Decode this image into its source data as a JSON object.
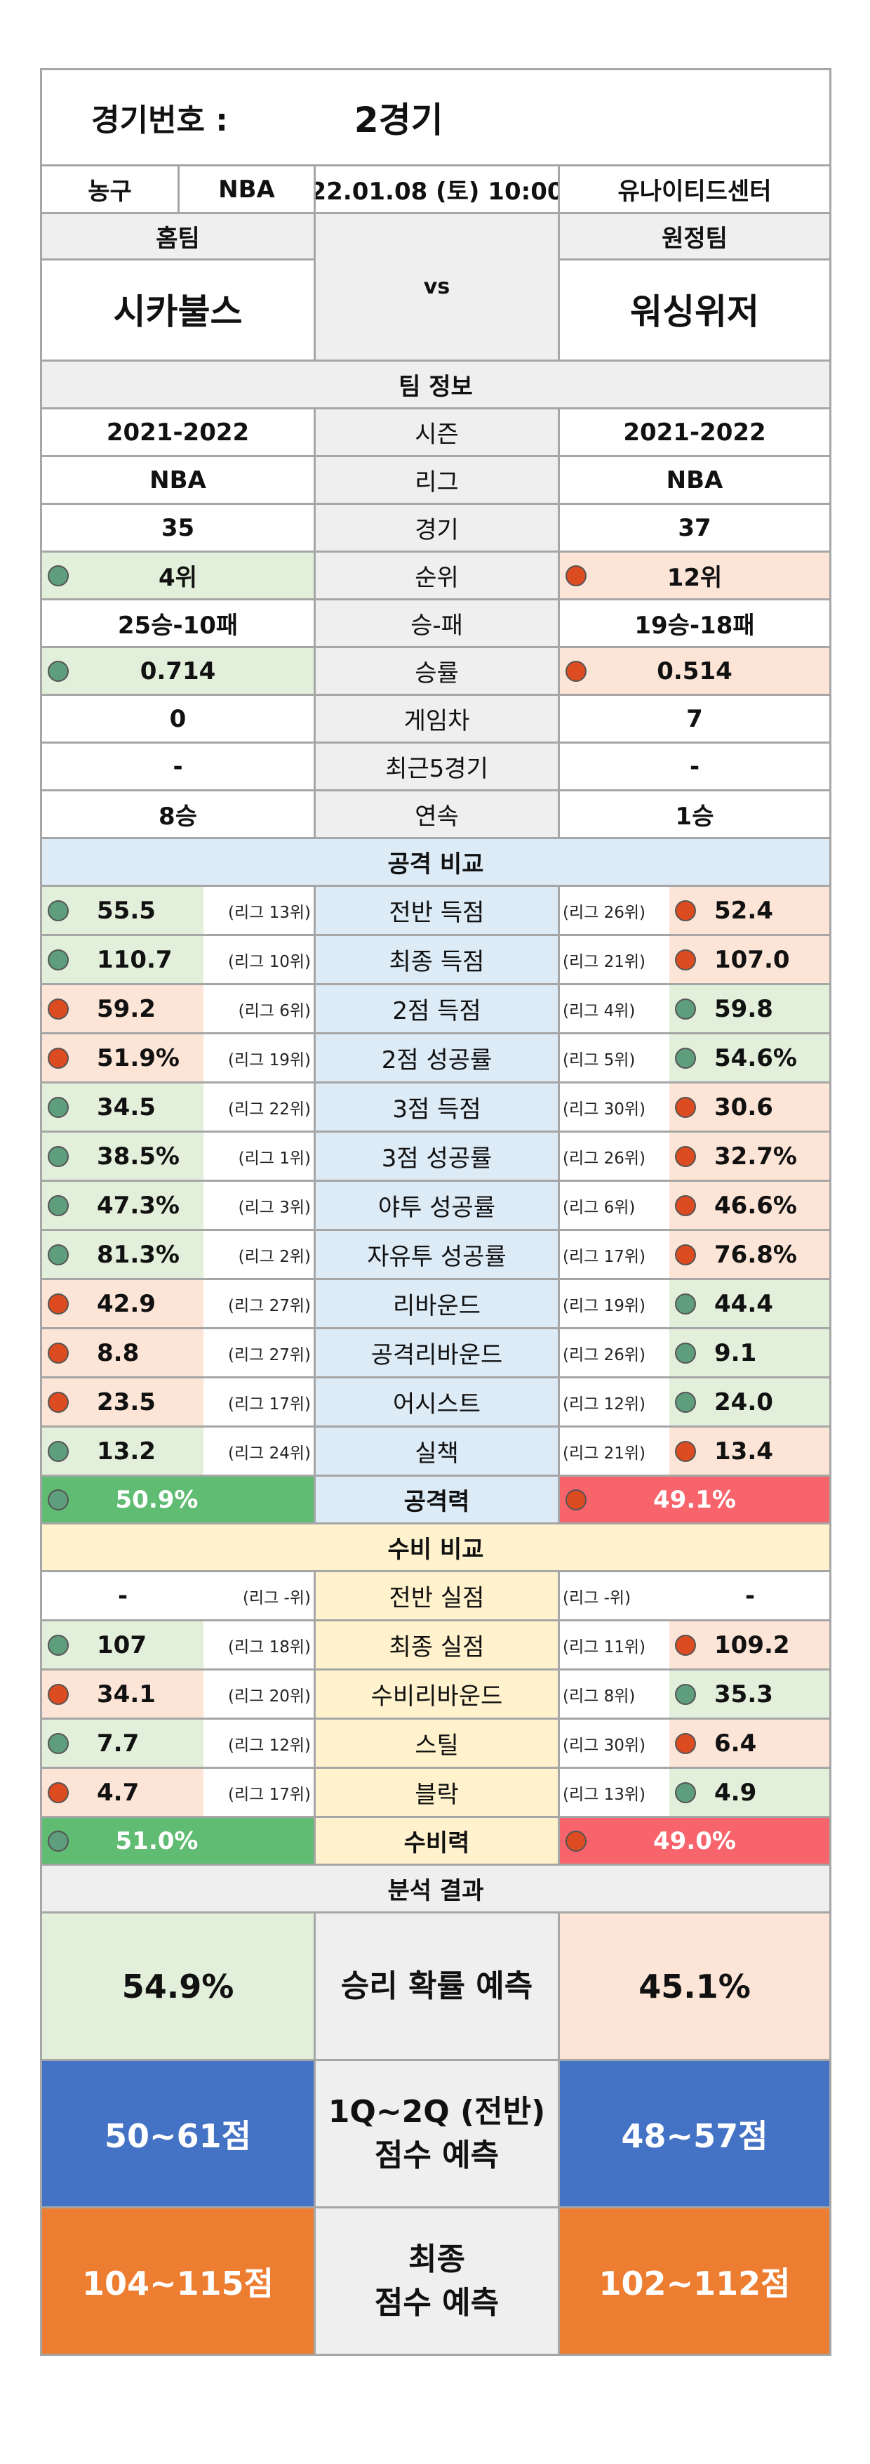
{
  "header": {
    "label": "경기번호 :",
    "value": "2경기"
  },
  "info": {
    "sport": "농구",
    "league": "NBA",
    "datetime": "22.01.08 (토) 10:00",
    "venue": "유나이티드센터"
  },
  "teams": {
    "home_label": "홈팀",
    "away_label": "원정팀",
    "vs": "vs",
    "home": "시카불스",
    "away": "워싱위저"
  },
  "team_info": {
    "title": "팀 정보",
    "rows": [
      {
        "label": "시즌",
        "home": "2021-2022",
        "away": "2021-2022",
        "hi": "none"
      },
      {
        "label": "리그",
        "home": "NBA",
        "away": "NBA",
        "hi": "none"
      },
      {
        "label": "경기",
        "home": "35",
        "away": "37",
        "hi": "none"
      },
      {
        "label": "순위",
        "home": "4위",
        "away": "12위",
        "hi": "home"
      },
      {
        "label": "승-패",
        "home": "25승-10패",
        "away": "19승-18패",
        "hi": "none"
      },
      {
        "label": "승률",
        "home": "0.714",
        "away": "0.514",
        "hi": "home"
      },
      {
        "label": "게임차",
        "home": "0",
        "away": "7",
        "hi": "none"
      },
      {
        "label": "최근5경기",
        "home": "-",
        "away": "-",
        "hi": "none"
      },
      {
        "label": "연속",
        "home": "8승",
        "away": "1승",
        "hi": "none"
      }
    ]
  },
  "attack": {
    "title": "공격 비교",
    "rows": [
      {
        "label": "전반 득점",
        "home": "55.5",
        "home_rank": "(리그 13위)",
        "away": "52.4",
        "away_rank": "(리그 26위)",
        "better": "home"
      },
      {
        "label": "최종 득점",
        "home": "110.7",
        "home_rank": "(리그 10위)",
        "away": "107.0",
        "away_rank": "(리그 21위)",
        "better": "home"
      },
      {
        "label": "2점 득점",
        "home": "59.2",
        "home_rank": "(리그 6위)",
        "away": "59.8",
        "away_rank": "(리그 4위)",
        "better": "away"
      },
      {
        "label": "2점 성공률",
        "home": "51.9%",
        "home_rank": "(리그 19위)",
        "away": "54.6%",
        "away_rank": "(리그 5위)",
        "better": "away"
      },
      {
        "label": "3점 득점",
        "home": "34.5",
        "home_rank": "(리그 22위)",
        "away": "30.6",
        "away_rank": "(리그 30위)",
        "better": "home"
      },
      {
        "label": "3점 성공률",
        "home": "38.5%",
        "home_rank": "(리그 1위)",
        "away": "32.7%",
        "away_rank": "(리그 26위)",
        "better": "home"
      },
      {
        "label": "야투 성공률",
        "home": "47.3%",
        "home_rank": "(리그 3위)",
        "away": "46.6%",
        "away_rank": "(리그 6위)",
        "better": "home"
      },
      {
        "label": "자유투 성공률",
        "home": "81.3%",
        "home_rank": "(리그 2위)",
        "away": "76.8%",
        "away_rank": "(리그 17위)",
        "better": "home"
      },
      {
        "label": "리바운드",
        "home": "42.9",
        "home_rank": "(리그 27위)",
        "away": "44.4",
        "away_rank": "(리그 19위)",
        "better": "away"
      },
      {
        "label": "공격리바운드",
        "home": "8.8",
        "home_rank": "(리그 27위)",
        "away": "9.1",
        "away_rank": "(리그 26위)",
        "better": "away"
      },
      {
        "label": "어시스트",
        "home": "23.5",
        "home_rank": "(리그 17위)",
        "away": "24.0",
        "away_rank": "(리그 12위)",
        "better": "away"
      },
      {
        "label": "실책",
        "home": "13.2",
        "home_rank": "(리그 24위)",
        "away": "13.4",
        "away_rank": "(리그 21위)",
        "better": "home"
      }
    ],
    "total": {
      "label": "공격력",
      "home": "50.9%",
      "away": "49.1%"
    }
  },
  "defense": {
    "title": "수비 비교",
    "rows": [
      {
        "label": "전반 실점",
        "home": "-",
        "home_rank": "(리그 -위)",
        "away": "-",
        "away_rank": "(리그 -위)",
        "better": "none"
      },
      {
        "label": "최종 실점",
        "home": "107",
        "home_rank": "(리그 18위)",
        "away": "109.2",
        "away_rank": "(리그 11위)",
        "better": "home"
      },
      {
        "label": "수비리바운드",
        "home": "34.1",
        "home_rank": "(리그 20위)",
        "away": "35.3",
        "away_rank": "(리그 8위)",
        "better": "away"
      },
      {
        "label": "스틸",
        "home": "7.7",
        "home_rank": "(리그 12위)",
        "away": "6.4",
        "away_rank": "(리그 30위)",
        "better": "home"
      },
      {
        "label": "블락",
        "home": "4.7",
        "home_rank": "(리그 17위)",
        "away": "4.9",
        "away_rank": "(리그 13위)",
        "better": "away"
      }
    ],
    "total": {
      "label": "수비력",
      "home": "51.0%",
      "away": "49.0%"
    }
  },
  "result": {
    "title": "분석 결과",
    "win": {
      "label": "승리 확률 예측",
      "home": "54.9%",
      "away": "45.1%"
    },
    "half": {
      "label_1": "1Q~2Q (전반)",
      "label_2": "점수 예측",
      "home": "50~61점",
      "away": "48~57점"
    },
    "final": {
      "label_1": "최종",
      "label_2": "점수 예측",
      "home": "104~115점",
      "away": "102~112점"
    }
  },
  "colors": {
    "better": "#5e9e7c",
    "worse": "#dd4b20",
    "attack_total_home": "#5fbc72",
    "attack_total_away": "#f7646b",
    "half_bg": "#4472c4",
    "final_bg": "#ed7d31"
  }
}
